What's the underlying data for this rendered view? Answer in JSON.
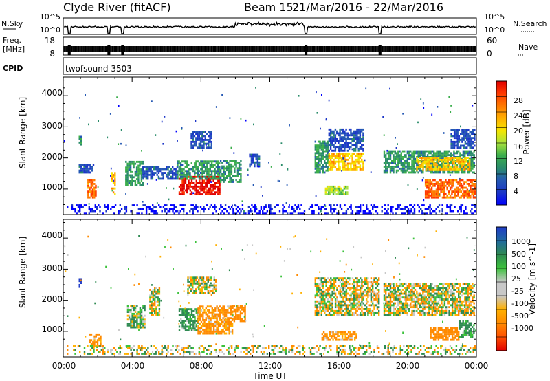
{
  "header": {
    "title": "Clyde River (fitACF)",
    "beam": "Beam 15",
    "dates": "21/Mar/2016 - 22/Mar/2016"
  },
  "status_panels": {
    "nsky": {
      "label": "N.Sky",
      "ticks": [
        "10^5",
        "10^0"
      ]
    },
    "nsearch": {
      "label": "N.Search",
      "ticks": [
        "10^5",
        "10^0"
      ]
    },
    "freq": {
      "label_top": "Freq.",
      "label_bottom": "[MHz]",
      "ticks": [
        "18",
        "8"
      ]
    },
    "nave": {
      "label": "Nave",
      "ticks": [
        "60",
        "0"
      ]
    },
    "cpid": {
      "label": "CPID",
      "value": "twofsound 3503"
    }
  },
  "power_panel": {
    "ylabel": "Slant Range [km]",
    "yticks": [
      "4000",
      "3000",
      "2000",
      "1000"
    ],
    "colorbar": {
      "label": "Power [dB]",
      "ticks": [
        "28",
        "24",
        "20",
        "16",
        "12",
        "8",
        "4"
      ],
      "colors": [
        "#e00000",
        "#ff3a00",
        "#ff7a00",
        "#ffb000",
        "#f5e600",
        "#a8e23c",
        "#3cae4c",
        "#2a8c6a",
        "#2458b4",
        "#1c36c8",
        "#0000ff"
      ]
    }
  },
  "velocity_panel": {
    "ylabel": "Slant Range [km]",
    "yticks": [
      "4000",
      "3000",
      "2000",
      "1000"
    ],
    "colorbar": {
      "label": "Velocity [m s^-1]",
      "ticks": [
        "1000",
        "500",
        "100",
        "25",
        "-25",
        "-100",
        "-500",
        "-1000"
      ],
      "colors": [
        "#1f3cc8",
        "#1f6aa0",
        "#2f8a52",
        "#3cc23c",
        "#c8c8c8",
        "#c8c8c8",
        "#ffb000",
        "#ff8a00",
        "#ff5000",
        "#e00000"
      ]
    }
  },
  "x_axis": {
    "label": "Time UT",
    "ticks": [
      "00:00",
      "04:00",
      "08:00",
      "12:00",
      "16:00",
      "20:00",
      "00:00"
    ]
  },
  "chart_data": {
    "type": "heatmap",
    "title": "Clyde River (fitACF)",
    "x": {
      "label": "Time UT",
      "range_hours": [
        0,
        24
      ]
    },
    "y": {
      "label": "Slant Range [km]",
      "range": [
        180,
        4600
      ]
    },
    "panels": [
      {
        "quantity": "Power [dB]",
        "scale": [
          4,
          28
        ],
        "clusters": [
          {
            "t": [
              0.9,
              1.0
            ],
            "r": [
              2400,
              2700
            ],
            "value": 12
          },
          {
            "t": [
              0.9,
              1.8
            ],
            "r": [
              1500,
              1800
            ],
            "value": 8
          },
          {
            "t": [
              1.4,
              1.9
            ],
            "r": [
              700,
              1300
            ],
            "value": 24
          },
          {
            "t": [
              2.6,
              3.0
            ],
            "r": [
              800,
              1500
            ],
            "value": 20
          },
          {
            "t": [
              3.6,
              4.6
            ],
            "r": [
              1100,
              1900
            ],
            "value": 12
          },
          {
            "t": [
              4.6,
              6.6
            ],
            "r": [
              1300,
              1700
            ],
            "value": 8
          },
          {
            "t": [
              6.7,
              9.1
            ],
            "r": [
              800,
              1400
            ],
            "value": 28
          },
          {
            "t": [
              6.6,
              9.1
            ],
            "r": [
              1300,
              1900
            ],
            "value": 12
          },
          {
            "t": [
              7.4,
              8.6
            ],
            "r": [
              2300,
              2800
            ],
            "value": 8
          },
          {
            "t": [
              9.1,
              10.3
            ],
            "r": [
              1200,
              1900
            ],
            "value": 12
          },
          {
            "t": [
              10.8,
              11.4
            ],
            "r": [
              1700,
              2100
            ],
            "value": 8
          },
          {
            "t": [
              14.6,
              15.4
            ],
            "r": [
              1500,
              2500
            ],
            "value": 12
          },
          {
            "t": [
              15.4,
              17.4
            ],
            "r": [
              1600,
              2100
            ],
            "value": 20
          },
          {
            "t": [
              15.4,
              17.4
            ],
            "r": [
              2200,
              2900
            ],
            "value": 8
          },
          {
            "t": [
              15.2,
              16.5
            ],
            "r": [
              800,
              1100
            ],
            "value": 16
          },
          {
            "t": [
              18.6,
              23.9
            ],
            "r": [
              1500,
              2200
            ],
            "value": 12
          },
          {
            "t": [
              20.5,
              23.6
            ],
            "r": [
              1600,
              2000
            ],
            "value": 20
          },
          {
            "t": [
              21.0,
              23.9
            ],
            "r": [
              700,
              1300
            ],
            "value": 24
          },
          {
            "t": [
              22.5,
              23.9
            ],
            "r": [
              2300,
              2900
            ],
            "value": 8
          },
          {
            "t": [
              0.2,
              23.9
            ],
            "r": [
              200,
              500
            ],
            "value": 4
          }
        ]
      },
      {
        "quantity": "Velocity [m s^-1]",
        "scale": [
          -1000,
          1000
        ],
        "clusters": [
          {
            "t": [
              0.9,
              1.0
            ],
            "r": [
              2400,
              2700
            ],
            "value": 1000
          },
          {
            "t": [
              1.5,
              2.2
            ],
            "r": [
              500,
              900
            ],
            "value": -200
          },
          {
            "t": [
              3.7,
              4.7
            ],
            "r": [
              1100,
              1800
            ],
            "value": 100
          },
          {
            "t": [
              5.0,
              5.6
            ],
            "r": [
              1500,
              2400
            ],
            "value": 0
          },
          {
            "t": [
              6.7,
              7.8
            ],
            "r": [
              1000,
              1700
            ],
            "value": 200
          },
          {
            "t": [
              7.2,
              8.9
            ],
            "r": [
              2200,
              2700
            ],
            "value": 0
          },
          {
            "t": [
              7.8,
              9.8
            ],
            "r": [
              900,
              1800
            ],
            "value": -200
          },
          {
            "t": [
              9.8,
              10.6
            ],
            "r": [
              1300,
              1800
            ],
            "value": -300
          },
          {
            "t": [
              14.6,
              18.4
            ],
            "r": [
              1500,
              2700
            ],
            "value": 0
          },
          {
            "t": [
              15.0,
              17.0
            ],
            "r": [
              700,
              1000
            ],
            "value": -200
          },
          {
            "t": [
              18.6,
              23.9
            ],
            "r": [
              1500,
              2500
            ],
            "value": 0
          },
          {
            "t": [
              21.3,
              23.0
            ],
            "r": [
              700,
              1100
            ],
            "value": -300
          },
          {
            "t": [
              23.0,
              23.9
            ],
            "r": [
              800,
              1300
            ],
            "value": 200
          },
          {
            "t": [
              0.2,
              23.9
            ],
            "r": [
              250,
              500
            ],
            "value": 0
          }
        ]
      }
    ],
    "gaps_hours": [
      0.35,
      2.65,
      3.45,
      14.1,
      18.4
    ],
    "noise_sky_log10": 1.2,
    "frequency_mhz": 12
  }
}
